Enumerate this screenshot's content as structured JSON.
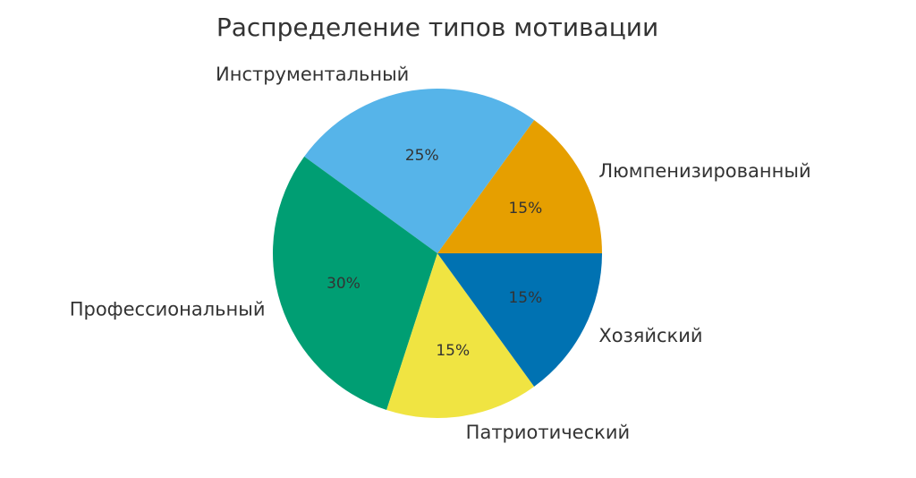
{
  "chart_data": {
    "type": "pie",
    "title": "Распределение типов мотивации",
    "start_angle_deg": 0,
    "direction": "counterclockwise",
    "slices": [
      {
        "label": "Люмпенизированный",
        "value": 15,
        "pct_label": "15%",
        "color": "#E69F00"
      },
      {
        "label": "Инструментальный",
        "value": 25,
        "pct_label": "25%",
        "color": "#56B4E9"
      },
      {
        "label": "Профессиональный",
        "value": 30,
        "pct_label": "30%",
        "color": "#009E73"
      },
      {
        "label": "Патриотический",
        "value": 15,
        "pct_label": "15%",
        "color": "#F0E442"
      },
      {
        "label": "Хозяйский",
        "value": 15,
        "pct_label": "15%",
        "color": "#0072B2"
      }
    ]
  }
}
